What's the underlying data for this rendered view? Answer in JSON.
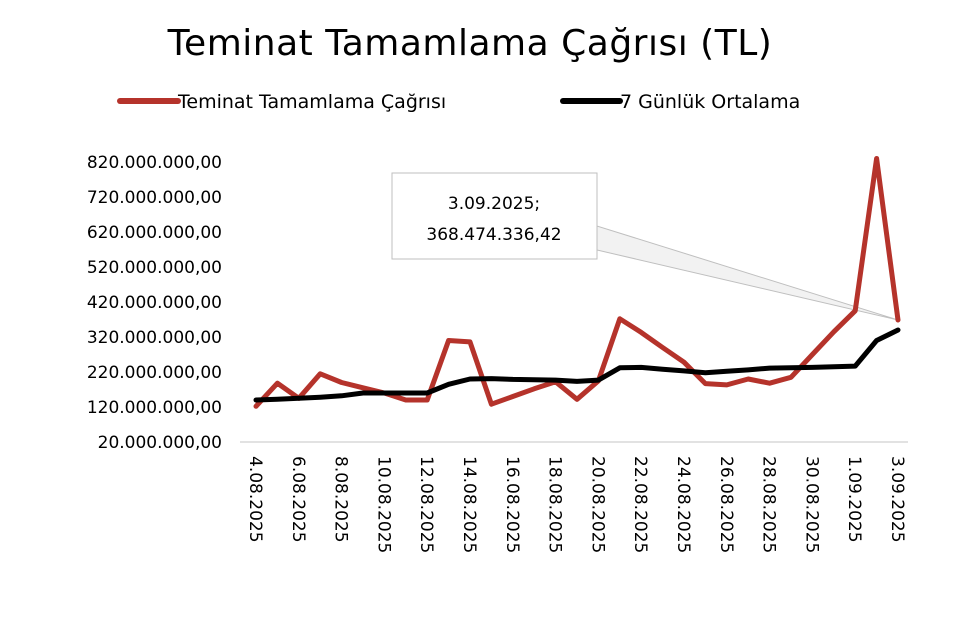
{
  "chart_data": {
    "type": "line",
    "title": "Teminat Tamamlama Çağrısı (TL)",
    "xlabel": "",
    "ylabel": "",
    "ylim": [
      20000000,
      820000000
    ],
    "y_ticks": [
      "820.000.000,00",
      "720.000.000,00",
      "620.000.000,00",
      "520.000.000,00",
      "420.000.000,00",
      "320.000.000,00",
      "220.000.000,00",
      "120.000.000,00",
      "20.000.000,00"
    ],
    "y_tick_values": [
      820000000,
      720000000,
      620000000,
      520000000,
      420000000,
      320000000,
      220000000,
      120000000,
      20000000
    ],
    "x_tick_labels": [
      "4.08.2025",
      "6.08.2025",
      "8.08.2025",
      "10.08.2025",
      "12.08.2025",
      "14.08.2025",
      "16.08.2025",
      "18.08.2025",
      "20.08.2025",
      "22.08.2025",
      "24.08.2025",
      "26.08.2025",
      "28.08.2025",
      "30.08.2025",
      "1.09.2025",
      "3.09.2025"
    ],
    "categories": [
      "4.08.2025",
      "5.08.2025",
      "6.08.2025",
      "7.08.2025",
      "8.08.2025",
      "9.08.2025",
      "10.08.2025",
      "11.08.2025",
      "12.08.2025",
      "13.08.2025",
      "14.08.2025",
      "15.08.2025",
      "16.08.2025",
      "17.08.2025",
      "18.08.2025",
      "19.08.2025",
      "20.08.2025",
      "21.08.2025",
      "22.08.2025",
      "23.08.2025",
      "24.08.2025",
      "25.08.2025",
      "26.08.2025",
      "27.08.2025",
      "28.08.2025",
      "29.08.2025",
      "30.08.2025",
      "31.08.2025",
      "1.09.2025",
      "2.09.2025",
      "3.09.2025"
    ],
    "series": [
      {
        "name": "Teminat Tamamlama Çağrısı",
        "color": "#b5332b",
        "values": [
          122000000,
          188000000,
          145000000,
          215000000,
          190000000,
          175000000,
          160000000,
          140000000,
          140000000,
          310000000,
          306000000,
          128000000,
          150000000,
          172000000,
          192000000,
          142000000,
          195000000,
          372000000,
          333000000,
          290000000,
          248000000,
          187000000,
          183000000,
          200000000,
          188000000,
          205000000,
          270000000,
          335000000,
          395000000,
          830000000,
          368474336.42
        ]
      },
      {
        "name": "7 Günlük Ortalama",
        "color": "#000000",
        "values": [
          140000000,
          142000000,
          145000000,
          148000000,
          152000000,
          160000000,
          160000000,
          160000000,
          160000000,
          185000000,
          200000000,
          201000000,
          199000000,
          198000000,
          197000000,
          193000000,
          197000000,
          232000000,
          233000000,
          228000000,
          223000000,
          218000000,
          222000000,
          226000000,
          231000000,
          232000000,
          233000000,
          235000000,
          237000000,
          310000000,
          340000000
        ]
      }
    ],
    "annotation": {
      "line1": "3.09.2025;",
      "line2": "368.474.336,42",
      "category": "3.09.2025",
      "value": 368474336.42
    },
    "grid": false,
    "legend_position": "top"
  }
}
